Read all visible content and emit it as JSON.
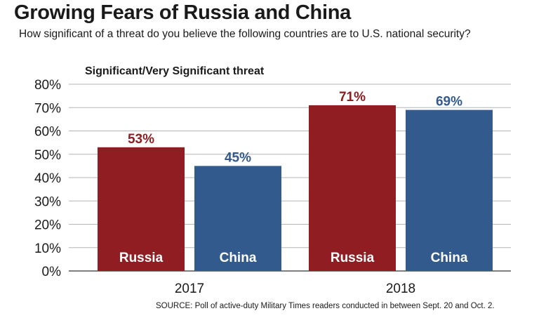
{
  "chart_data": {
    "type": "bar",
    "title": "Growing Fears of Russia and China",
    "subtitle": "How significant of a threat do you believe the following countries are to U.S. national security?",
    "ylabel": "Significant/Very Significant threat",
    "ylim": [
      0,
      80
    ],
    "yticks": [
      "0%",
      "10%",
      "20%",
      "30%",
      "40%",
      "50%",
      "60%",
      "70%",
      "80%"
    ],
    "grid": true,
    "categories": [
      "2017",
      "2018"
    ],
    "series": [
      {
        "name": "Russia",
        "values": [
          53,
          71
        ],
        "labels": [
          "53%",
          "71%"
        ],
        "color": "#8f1d22"
      },
      {
        "name": "China",
        "values": [
          45,
          69
        ],
        "labels": [
          "45%",
          "69%"
        ],
        "color": "#335a8c"
      }
    ],
    "source": "SOURCE: Poll of active-duty Military Times readers conducted in between Sept. 20 and Oct. 2."
  }
}
